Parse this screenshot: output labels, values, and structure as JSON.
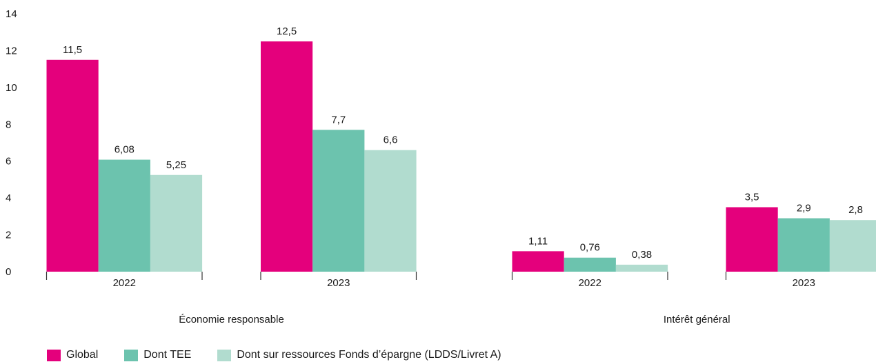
{
  "chart_data": {
    "type": "bar",
    "ylim": [
      0,
      14
    ],
    "yticks": [
      "0",
      "2",
      "4",
      "6",
      "8",
      "10",
      "12",
      "14"
    ],
    "groups": [
      {
        "label": "Économie responsable",
        "categories": [
          "2022",
          "2023"
        ]
      },
      {
        "label": "Intérêt général",
        "categories": [
          "2022",
          "2023"
        ]
      }
    ],
    "series": [
      {
        "name": "Global",
        "color": "#e4007c",
        "values": [
          11.5,
          12.5,
          1.11,
          3.5
        ],
        "labels": [
          "11,5",
          "12,5",
          "1,11",
          "3,5"
        ]
      },
      {
        "name": "Dont TEE",
        "color": "#6cc3ae",
        "values": [
          6.08,
          7.7,
          0.76,
          2.9
        ],
        "labels": [
          "6,08",
          "7,7",
          "0,76",
          "2,9"
        ]
      },
      {
        "name": "Dont sur ressources Fonds d’épargne (LDDS/Livret A)",
        "color": "#b1dccf",
        "values": [
          5.25,
          6.6,
          0.38,
          2.8
        ],
        "labels": [
          "5,25",
          "6,6",
          "0,38",
          "2,8"
        ]
      }
    ],
    "legend_position": "bottom-left",
    "grid": false
  }
}
